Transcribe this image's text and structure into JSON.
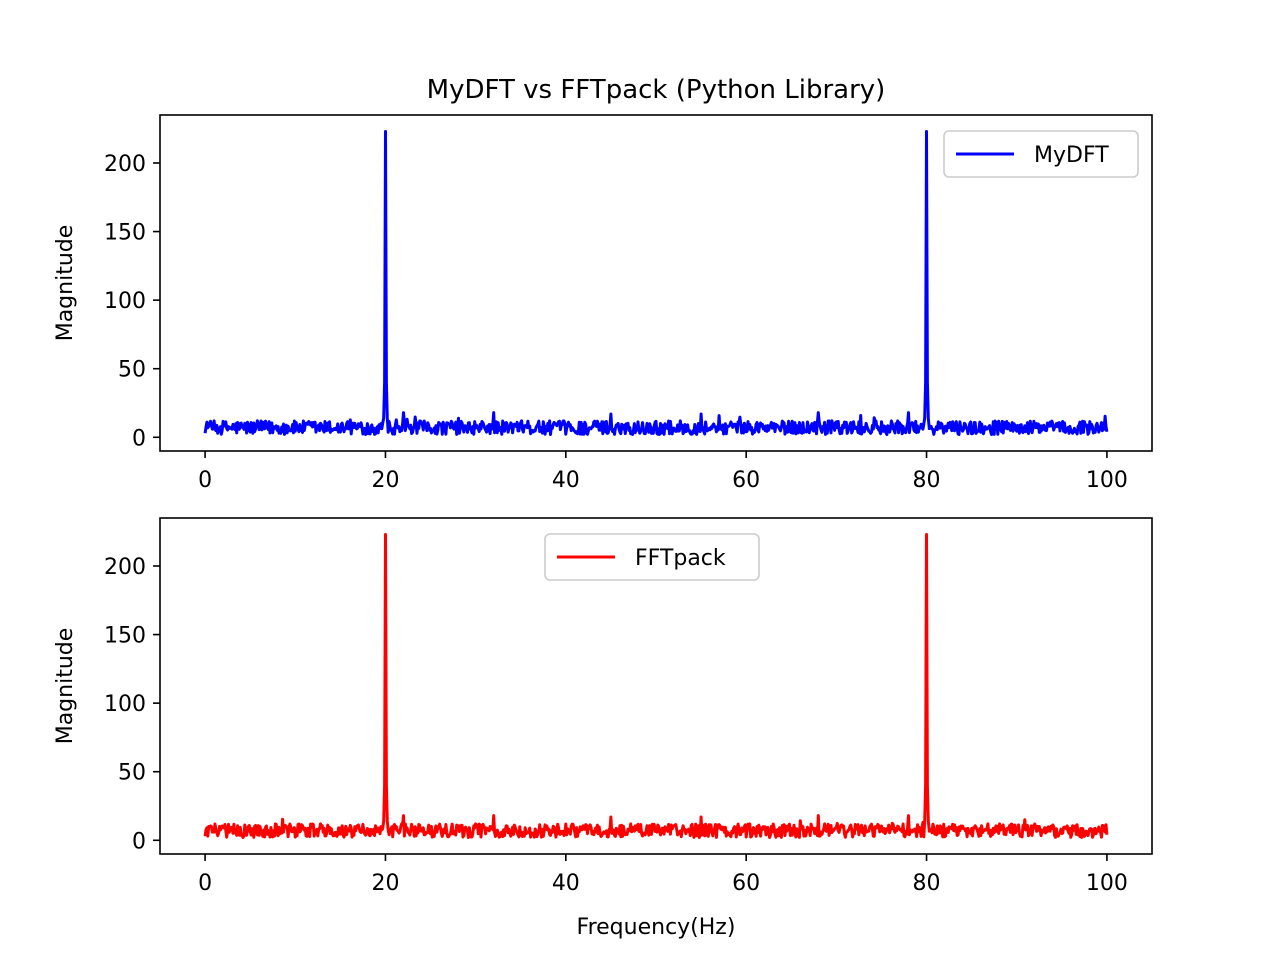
{
  "figure": {
    "title": "MyDFT vs FFTpack (Python Library)"
  },
  "chart_data": [
    {
      "type": "line",
      "title": "MyDFT vs FFTpack (Python Library)",
      "xlabel": "",
      "ylabel": "Magnitude",
      "xlim": [
        -5,
        105
      ],
      "ylim": [
        -10,
        235
      ],
      "xticks": [
        0,
        20,
        40,
        60,
        80,
        100
      ],
      "yticks": [
        0,
        50,
        100,
        150,
        200
      ],
      "legend": "top-right",
      "grid": false,
      "series": [
        {
          "name": "MyDFT",
          "color": "#0000ff",
          "noise_level": [
            2,
            12
          ],
          "points": [
            {
              "x": 0,
              "y": 3
            },
            {
              "x": 0.5,
              "y": 10
            },
            {
              "x": 19.5,
              "y": 10
            },
            {
              "x": 20,
              "y": 223
            },
            {
              "x": 20.5,
              "y": 8
            },
            {
              "x": 22,
              "y": 18
            },
            {
              "x": 32,
              "y": 18
            },
            {
              "x": 45,
              "y": 17
            },
            {
              "x": 55,
              "y": 17
            },
            {
              "x": 68,
              "y": 18
            },
            {
              "x": 78,
              "y": 18
            },
            {
              "x": 80,
              "y": 223
            },
            {
              "x": 80.5,
              "y": 8
            },
            {
              "x": 100,
              "y": 4
            }
          ]
        }
      ]
    },
    {
      "type": "line",
      "title": "",
      "xlabel": "Frequency(Hz)",
      "ylabel": "Magnitude",
      "xlim": [
        -5,
        105
      ],
      "ylim": [
        -10,
        235
      ],
      "xticks": [
        0,
        20,
        40,
        60,
        80,
        100
      ],
      "yticks": [
        0,
        50,
        100,
        150,
        200
      ],
      "legend": "top-center",
      "grid": false,
      "series": [
        {
          "name": "FFTpack",
          "color": "#ff0000",
          "noise_level": [
            2,
            12
          ],
          "points": [
            {
              "x": 0,
              "y": 3
            },
            {
              "x": 0.5,
              "y": 10
            },
            {
              "x": 19.5,
              "y": 10
            },
            {
              "x": 20,
              "y": 223
            },
            {
              "x": 20.5,
              "y": 8
            },
            {
              "x": 22,
              "y": 18
            },
            {
              "x": 32,
              "y": 18
            },
            {
              "x": 45,
              "y": 17
            },
            {
              "x": 55,
              "y": 17
            },
            {
              "x": 68,
              "y": 18
            },
            {
              "x": 78,
              "y": 18
            },
            {
              "x": 80,
              "y": 223
            },
            {
              "x": 80.5,
              "y": 8
            },
            {
              "x": 100,
              "y": 4
            }
          ]
        }
      ]
    }
  ]
}
